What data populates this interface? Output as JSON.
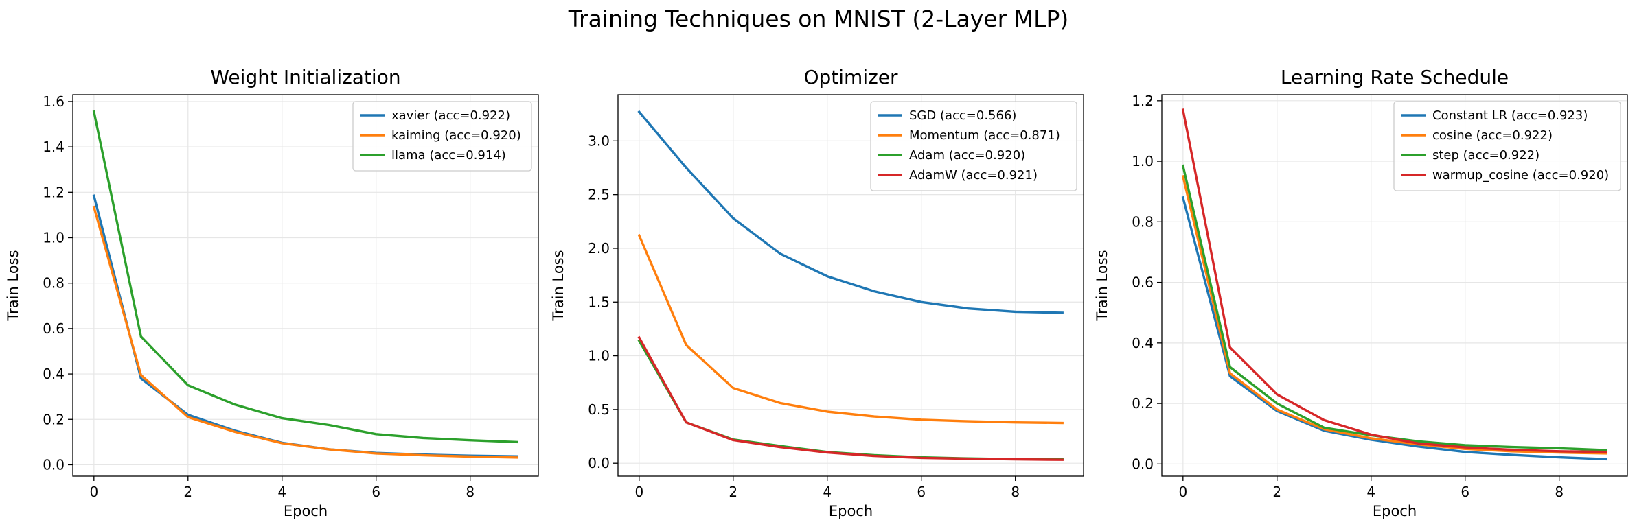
{
  "figure": {
    "title": "Training Techniques on MNIST (2-Layer MLP)"
  },
  "colors": {
    "blue": "#1f77b4",
    "orange": "#ff7f0e",
    "green": "#2ca02c",
    "red": "#d62728"
  },
  "chart_data": [
    {
      "type": "line",
      "title": "Weight Initialization",
      "xlabel": "Epoch",
      "ylabel": "Train Loss",
      "xlim": [
        -0.45,
        9.45
      ],
      "ylim": [
        -0.05,
        1.63
      ],
      "xticks": [
        0,
        2,
        4,
        6,
        8
      ],
      "yticks": [
        0.0,
        0.2,
        0.4,
        0.6,
        0.8,
        1.0,
        1.2,
        1.4,
        1.6
      ],
      "ytick_decimals": 1,
      "grid": true,
      "legend": "top-right",
      "x": [
        0,
        1,
        2,
        3,
        4,
        5,
        6,
        7,
        8,
        9
      ],
      "series": [
        {
          "name": "xavier (acc=0.922)",
          "color": "#1f77b4",
          "values": [
            1.185,
            0.38,
            0.22,
            0.15,
            0.097,
            0.068,
            0.052,
            0.045,
            0.04,
            0.037
          ]
        },
        {
          "name": "kaiming (acc=0.920)",
          "color": "#ff7f0e",
          "values": [
            1.135,
            0.395,
            0.21,
            0.145,
            0.095,
            0.068,
            0.05,
            0.042,
            0.036,
            0.032
          ]
        },
        {
          "name": "llama (acc=0.914)",
          "color": "#2ca02c",
          "values": [
            1.555,
            0.565,
            0.35,
            0.265,
            0.205,
            0.175,
            0.135,
            0.118,
            0.108,
            0.1
          ]
        }
      ]
    },
    {
      "type": "line",
      "title": "Optimizer",
      "xlabel": "Epoch",
      "ylabel": "Train Loss",
      "xlim": [
        -0.45,
        9.45
      ],
      "ylim": [
        -0.12,
        3.43
      ],
      "xticks": [
        0,
        2,
        4,
        6,
        8
      ],
      "yticks": [
        0.0,
        0.5,
        1.0,
        1.5,
        2.0,
        2.5,
        3.0
      ],
      "ytick_decimals": 1,
      "grid": true,
      "legend": "top-right",
      "x": [
        0,
        1,
        2,
        3,
        4,
        5,
        6,
        7,
        8,
        9
      ],
      "series": [
        {
          "name": "SGD (acc=0.566)",
          "color": "#1f77b4",
          "values": [
            3.27,
            2.75,
            2.28,
            1.95,
            1.74,
            1.6,
            1.5,
            1.44,
            1.41,
            1.4
          ]
        },
        {
          "name": "Momentum (acc=0.871)",
          "color": "#ff7f0e",
          "values": [
            2.12,
            1.1,
            0.7,
            0.56,
            0.48,
            0.435,
            0.405,
            0.39,
            0.38,
            0.375
          ]
        },
        {
          "name": "Adam (acc=0.920)",
          "color": "#2ca02c",
          "values": [
            1.14,
            0.38,
            0.22,
            0.16,
            0.105,
            0.075,
            0.055,
            0.045,
            0.038,
            0.035
          ]
        },
        {
          "name": "AdamW (acc=0.921)",
          "color": "#d62728",
          "values": [
            1.17,
            0.38,
            0.215,
            0.15,
            0.1,
            0.068,
            0.05,
            0.042,
            0.036,
            0.032
          ]
        }
      ]
    },
    {
      "type": "line",
      "title": "Learning Rate Schedule",
      "xlabel": "Epoch",
      "ylabel": "Train Loss",
      "xlim": [
        -0.45,
        9.45
      ],
      "ylim": [
        -0.04,
        1.22
      ],
      "xticks": [
        0,
        2,
        4,
        6,
        8
      ],
      "yticks": [
        0.0,
        0.2,
        0.4,
        0.6,
        0.8,
        1.0,
        1.2
      ],
      "ytick_decimals": 1,
      "grid": true,
      "legend": "top-right",
      "x": [
        0,
        1,
        2,
        3,
        4,
        5,
        6,
        7,
        8,
        9
      ],
      "series": [
        {
          "name": "Constant LR (acc=0.923)",
          "color": "#1f77b4",
          "values": [
            0.88,
            0.29,
            0.175,
            0.11,
            0.08,
            0.058,
            0.04,
            0.03,
            0.022,
            0.016
          ]
        },
        {
          "name": "cosine (acc=0.922)",
          "color": "#ff7f0e",
          "values": [
            0.95,
            0.3,
            0.18,
            0.115,
            0.085,
            0.065,
            0.05,
            0.042,
            0.038,
            0.035
          ]
        },
        {
          "name": "step (acc=0.922)",
          "color": "#2ca02c",
          "values": [
            0.985,
            0.32,
            0.2,
            0.12,
            0.095,
            0.075,
            0.062,
            0.056,
            0.052,
            0.046
          ]
        },
        {
          "name": "warmup_cosine (acc=0.920)",
          "color": "#d62728",
          "values": [
            1.17,
            0.385,
            0.23,
            0.145,
            0.097,
            0.068,
            0.055,
            0.047,
            0.042,
            0.04
          ]
        }
      ]
    }
  ]
}
